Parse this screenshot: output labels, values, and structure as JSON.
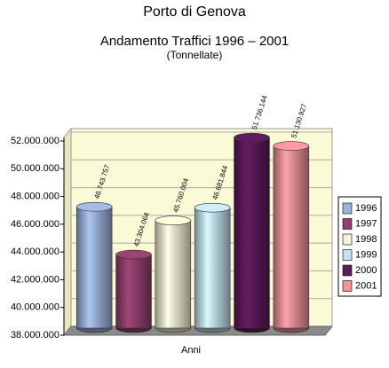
{
  "chart_data": {
    "type": "cylinder-bar",
    "title": "Porto di Genova",
    "subtitle": "Andamento Traffici 1996 – 2001",
    "unit_label": "(Tonnellate)",
    "x_label": "Anni",
    "categories": [
      null
    ],
    "series": [
      {
        "name": "1996",
        "color": "#9db3dc",
        "values": [
          46743757
        ],
        "value_labels": [
          "46.743.757"
        ]
      },
      {
        "name": "1997",
        "color": "#93406f",
        "values": [
          43304064
        ],
        "value_labels": [
          "43.304.064"
        ]
      },
      {
        "name": "1998",
        "color": "#f6f2d4",
        "values": [
          45760004
        ],
        "value_labels": [
          "45.760.004"
        ]
      },
      {
        "name": "1999",
        "color": "#c4e2f2",
        "values": [
          46681844
        ],
        "value_labels": [
          "46.681.844"
        ]
      },
      {
        "name": "2000",
        "color": "#5c1a5a",
        "values": [
          51736144
        ],
        "value_labels": [
          "51.736.144"
        ]
      },
      {
        "name": "2001",
        "color": "#f2939c",
        "values": [
          51130927
        ],
        "value_labels": [
          "51.130.927"
        ]
      }
    ],
    "ylim": [
      38000000,
      52000000
    ],
    "yticks": [
      {
        "value": 38000000,
        "label": "38.000.000"
      },
      {
        "value": 40000000,
        "label": "40.000.000"
      },
      {
        "value": 42000000,
        "label": "42.000.000"
      },
      {
        "value": 44000000,
        "label": "44.000.000"
      },
      {
        "value": 46000000,
        "label": "46.000.000"
      },
      {
        "value": 48000000,
        "label": "48.000.000"
      },
      {
        "value": 50000000,
        "label": "50.000.000"
      },
      {
        "value": 52000000,
        "label": "52.000.000"
      }
    ],
    "grid": true,
    "legend": "right"
  }
}
